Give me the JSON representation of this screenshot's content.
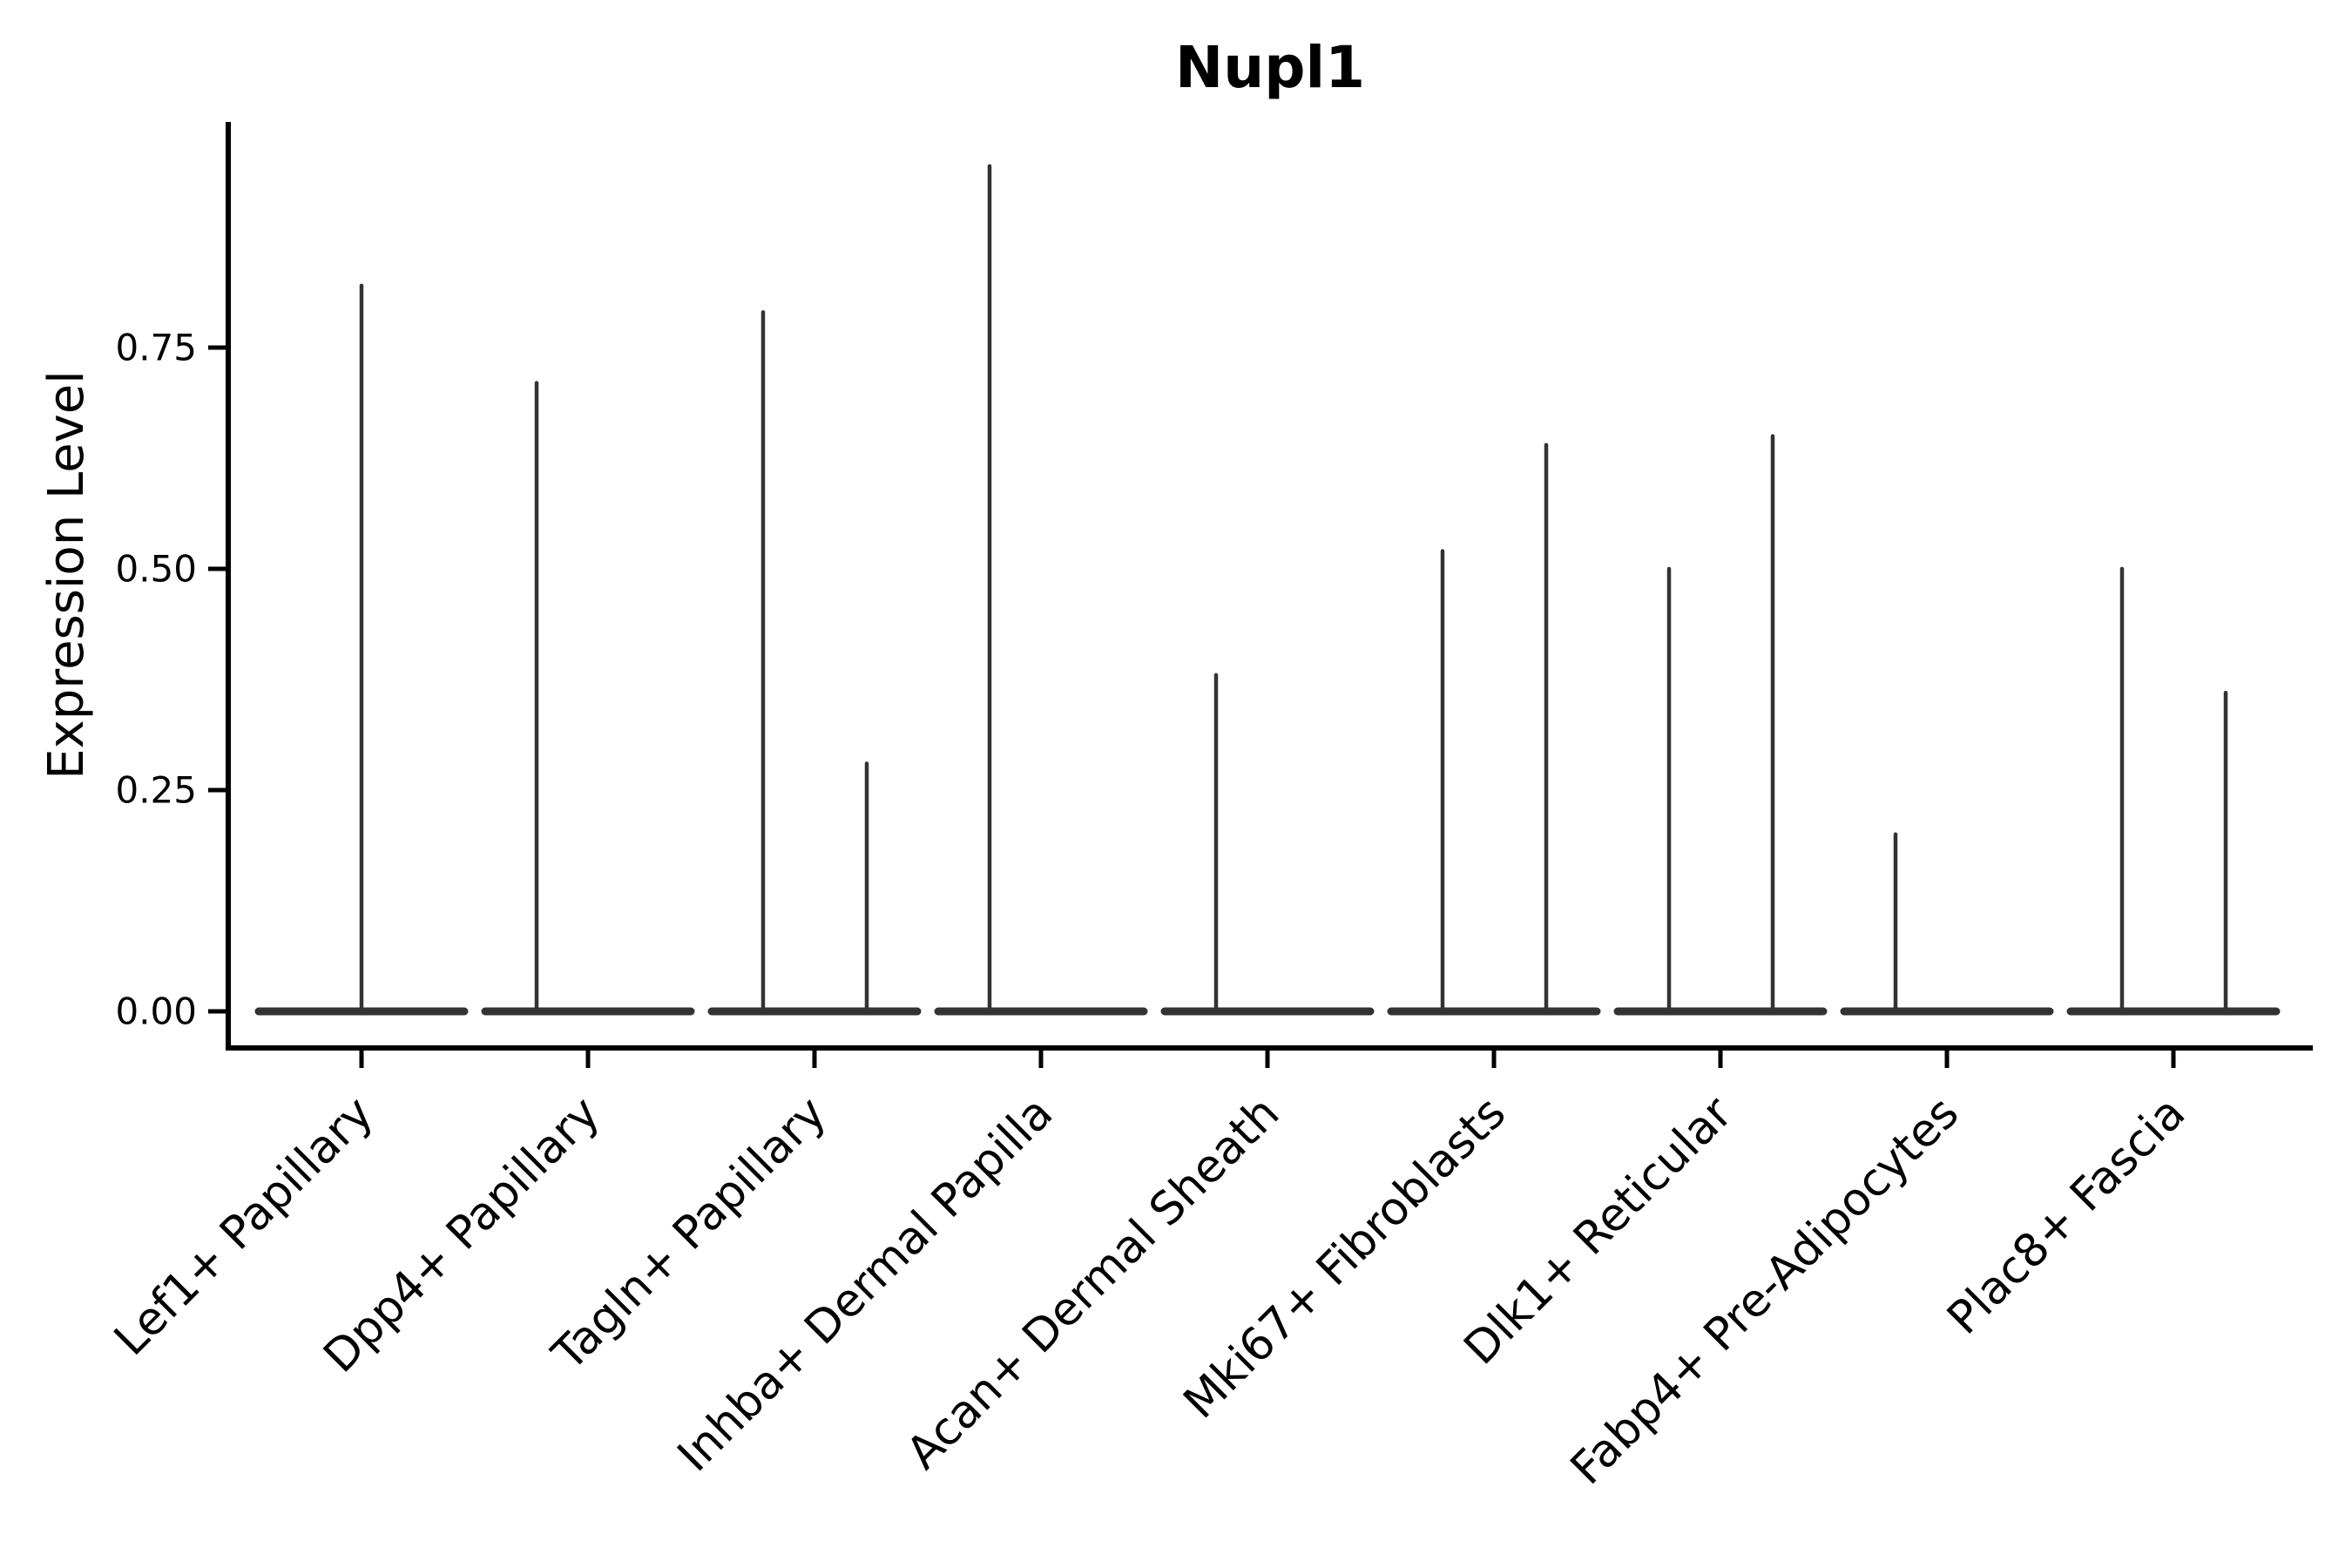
{
  "chart_data": {
    "type": "violin",
    "title": "Nupl1",
    "ylabel": "Expression Level",
    "xlabel": "",
    "ylim": [
      0,
      1.0
    ],
    "yticks": [
      "0.00",
      "0.25",
      "0.50",
      "0.75"
    ],
    "ytick_values": [
      0,
      0.25,
      0.5,
      0.75
    ],
    "grid": false,
    "legend_position": "none",
    "violin_color": "#333333",
    "axis_color": "#000000",
    "categories": [
      "Lef1+ Papillary",
      "Dpp4+ Papillary",
      "Tagln+ Papillary",
      "Inhba+ Dermal Papilla",
      "Acan+ Dermal Sheath",
      "Mki67+ Fibroblasts",
      "Dlk1+ Reticular",
      "Fabp4+ Pre-Adipocytes",
      "Plac8+ Fascia"
    ],
    "violins": [
      {
        "category": "Lef1+ Papillary",
        "baseline_value": 0,
        "spikes": [
          {
            "position": "center",
            "max": 0.82
          }
        ]
      },
      {
        "category": "Dpp4+ Papillary",
        "baseline_value": 0,
        "spikes": [
          {
            "position": "left",
            "max": 0.71
          }
        ]
      },
      {
        "category": "Tagln+ Papillary",
        "baseline_value": 0,
        "spikes": [
          {
            "position": "left",
            "max": 0.79
          },
          {
            "position": "right",
            "max": 0.28
          }
        ]
      },
      {
        "category": "Inhba+ Dermal Papilla",
        "baseline_value": 0,
        "spikes": [
          {
            "position": "left",
            "max": 0.955
          }
        ]
      },
      {
        "category": "Acan+ Dermal Sheath",
        "baseline_value": 0,
        "spikes": [
          {
            "position": "left",
            "max": 0.38
          }
        ]
      },
      {
        "category": "Mki67+ Fibroblasts",
        "baseline_value": 0,
        "spikes": [
          {
            "position": "left",
            "max": 0.52
          },
          {
            "position": "right",
            "max": 0.64
          }
        ]
      },
      {
        "category": "Dlk1+ Reticular",
        "baseline_value": 0,
        "spikes": [
          {
            "position": "left",
            "max": 0.5
          },
          {
            "position": "right",
            "max": 0.65
          }
        ]
      },
      {
        "category": "Fabp4+ Pre-Adipocytes",
        "baseline_value": 0,
        "spikes": [
          {
            "position": "left",
            "max": 0.2
          }
        ]
      },
      {
        "category": "Plac8+ Fascia",
        "baseline_value": 0,
        "spikes": [
          {
            "position": "left",
            "max": 0.5
          },
          {
            "position": "right",
            "max": 0.36
          }
        ]
      }
    ]
  }
}
